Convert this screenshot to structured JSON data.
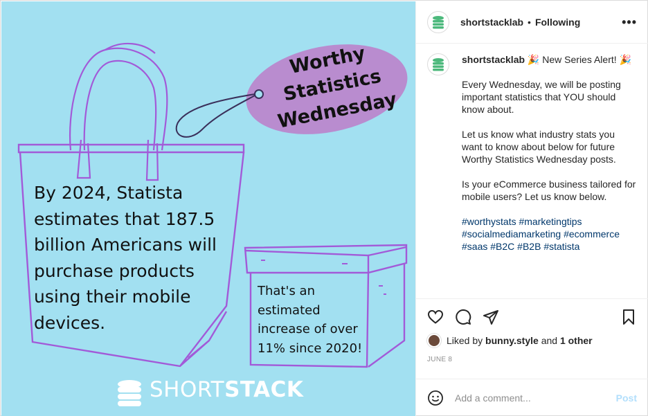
{
  "image": {
    "tag_lines": [
      "Worthy",
      "Statistics",
      "Wednesday"
    ],
    "bag_text": "By 2024, Statista estimates that 187.5 billion Americans will purchase products using their mobile devices.",
    "box_text": "That's an estimated increase of over 11% since 2020!",
    "brand": {
      "light": "SHORT",
      "bold": "STACK"
    },
    "colors": {
      "background": "#a2e0f1",
      "tag": "#b98ccf",
      "outline": "#a25ad8"
    }
  },
  "header": {
    "username": "shortstacklab",
    "separator": "•",
    "follow_status": "Following",
    "more_icon": "ellipsis-icon"
  },
  "caption": {
    "username": "shortstacklab",
    "first_line": " 🎉 New Series Alert! 🎉",
    "paragraphs": [
      "Every Wednesday, we will be posting important statistics that YOU should know about.",
      "Let us know what industry stats you want to know about below for future Worthy Statistics Wednesday posts.",
      "Is your eCommerce business tailored for mobile users? Let us know below."
    ],
    "hashtags": [
      "#worthystats",
      "#marketingtips",
      "#socialmediamarketing",
      "#ecommerce",
      "#saas",
      "#B2C",
      "#B2B",
      "#statista"
    ]
  },
  "actions": {
    "icons": [
      "heart-icon",
      "comment-icon",
      "share-icon",
      "bookmark-icon"
    ]
  },
  "likes": {
    "prefix": "Liked by",
    "user": "bunny.style",
    "mid": "and",
    "others": "1 other"
  },
  "date": "JUNE 8",
  "comment": {
    "placeholder": "Add a comment...",
    "post_label": "Post"
  }
}
